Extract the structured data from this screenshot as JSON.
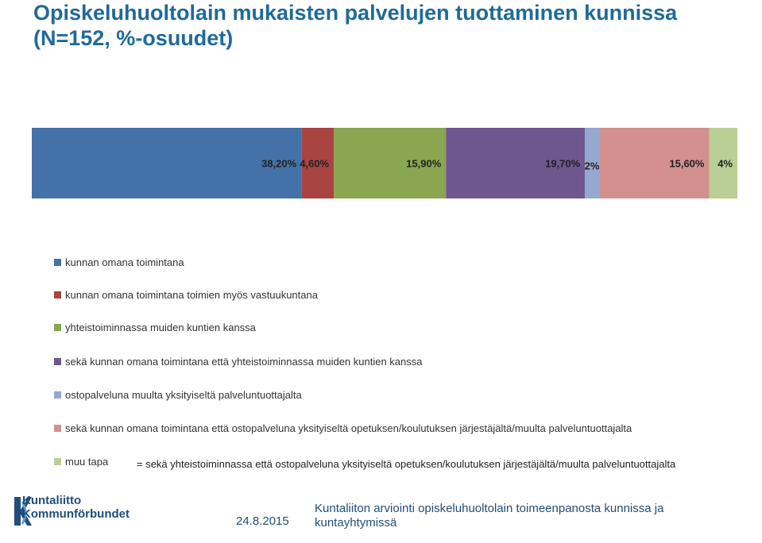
{
  "slide": {
    "title": "Opiskeluhuoltolain mukaisten palvelujen tuottaminen kunnissa (N=152, %-osuudet)"
  },
  "chart_data": {
    "type": "bar",
    "orientation": "horizontal-stacked-100",
    "series": [
      {
        "name": "kunnan omana toimintana",
        "value": 38.2,
        "label": "38,20%",
        "color": "#4472a8"
      },
      {
        "name": "kunnan omana toimintana toimien myös vastuukuntana",
        "value": 4.6,
        "label": "4,60%",
        "color": "#a94442"
      },
      {
        "name": "yhteistoiminnassa muiden kuntien kanssa",
        "value": 15.9,
        "label": "15,90%",
        "color": "#8aa650"
      },
      {
        "name": "sekä kunnan omana toimintana että yhteistoiminnassa muiden kuntien kanssa",
        "value": 19.7,
        "label": "19,70%",
        "color": "#6d578e"
      },
      {
        "name": "ostopalveluna muulta yksityiseltä palveluntuottajalta",
        "value": 2,
        "label": "2%",
        "color": "#94a8d0"
      },
      {
        "name": "sekä kunnan omana toimintana että ostopalveluna yksityiseltä opetuksen/koulutuksen järjestäjältä/muulta palveluntuottajalta",
        "value": 15.6,
        "label": "15,60%",
        "color": "#d3908e"
      },
      {
        "name": "muu tapa",
        "value": 4,
        "label": "4%",
        "color": "#b9cf95"
      }
    ],
    "legend_position": "bottom",
    "grid": false
  },
  "legend_note": "= sekä yhteistoiminnassa että ostopalveluna yksityiseltä opetuksen/koulutuksen järjestäjältä/muulta palveluntuottajalta",
  "footer": {
    "logo_line1": "Kuntaliitto",
    "logo_line2": "Kommunförbundet",
    "date": "24.8.2015",
    "title": "Kuntaliiton arviointi opiskeluhuoltolain toimeenpanosta kunnissa ja kuntayhtymissä"
  }
}
